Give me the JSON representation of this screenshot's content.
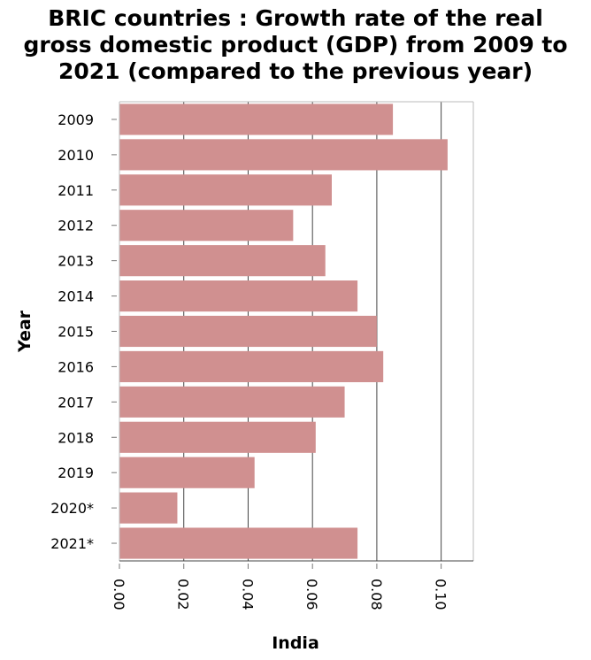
{
  "chart_data": {
    "type": "bar",
    "orientation": "horizontal",
    "title_lines": [
      "BRIC countries : Growth rate of the real",
      "gross domestic product (GDP) from 2009 to",
      "2021 (compared to the previous year)"
    ],
    "xlabel": "India",
    "ylabel": "Year",
    "categories": [
      "2009",
      "2010",
      "2011",
      "2012",
      "2013",
      "2014",
      "2015",
      "2016",
      "2017",
      "2018",
      "2019",
      "2020*",
      "2021*"
    ],
    "values": [
      0.085,
      0.102,
      0.066,
      0.054,
      0.064,
      0.074,
      0.08,
      0.082,
      0.07,
      0.061,
      0.042,
      0.018,
      0.074
    ],
    "xlim": [
      0,
      0.11
    ],
    "xticks": [
      "0.00",
      "0.02",
      "0.04",
      "0.06",
      "0.08",
      "0.10"
    ],
    "xtick_values": [
      0,
      0.02,
      0.04,
      0.06,
      0.08,
      0.1
    ],
    "grid": "vertical",
    "bar_color": "#d09090",
    "grid_color": "#444444"
  }
}
